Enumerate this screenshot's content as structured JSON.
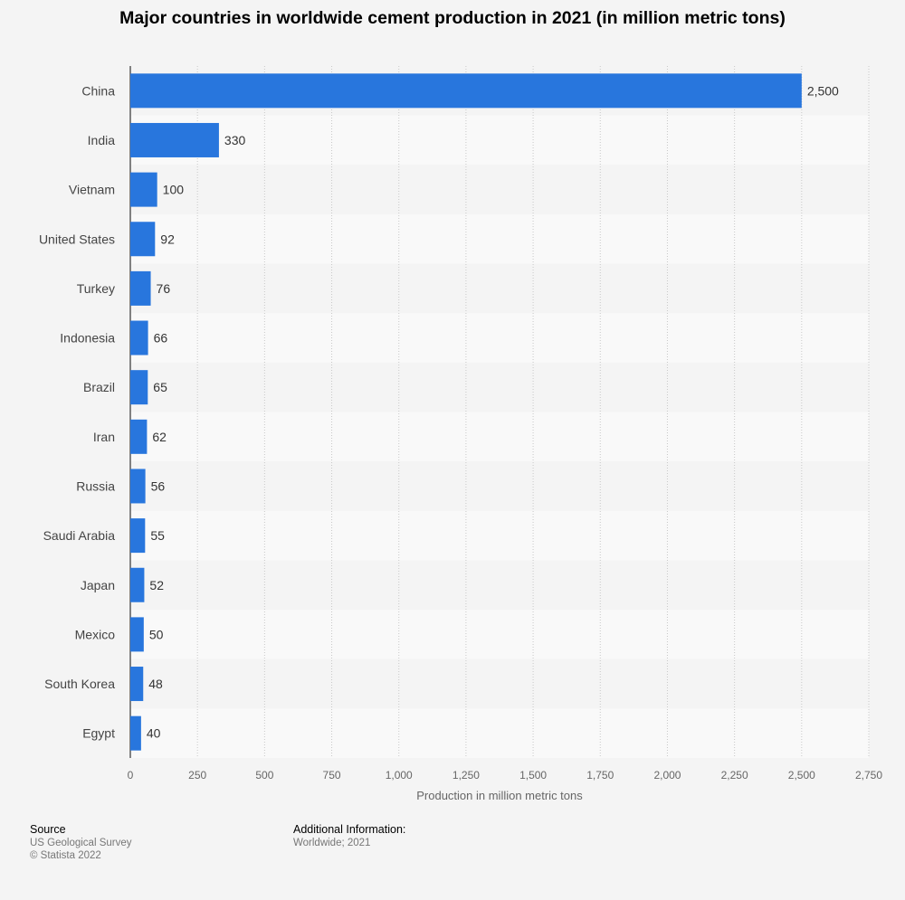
{
  "chart_data": {
    "type": "bar",
    "orientation": "horizontal",
    "title": "Major countries in worldwide cement production in 2021 (in million metric tons)",
    "categories": [
      "China",
      "India",
      "Vietnam",
      "United States",
      "Turkey",
      "Indonesia",
      "Brazil",
      "Iran",
      "Russia",
      "Saudi Arabia",
      "Japan",
      "Mexico",
      "South Korea",
      "Egypt"
    ],
    "values": [
      2500,
      330,
      100,
      92,
      76,
      66,
      65,
      62,
      56,
      55,
      52,
      50,
      48,
      40
    ],
    "value_labels": [
      "2,500",
      "330",
      "100",
      "92",
      "76",
      "66",
      "65",
      "62",
      "56",
      "55",
      "52",
      "50",
      "48",
      "40"
    ],
    "xlabel": "Production in million metric tons",
    "ylabel": "",
    "xlim": [
      0,
      2750
    ],
    "ticks": [
      0,
      250,
      500,
      750,
      1000,
      1250,
      1500,
      1750,
      2000,
      2250,
      2500,
      2750
    ],
    "tick_labels": [
      "0",
      "250",
      "500",
      "750",
      "1,000",
      "1,250",
      "1,500",
      "1,750",
      "2,000",
      "2,250",
      "2,500",
      "2,750"
    ],
    "grid": true,
    "bar_color": "#2876dd"
  },
  "footer": {
    "source_heading": "Source",
    "source_lines": [
      "US Geological Survey",
      "© Statista 2022"
    ],
    "additional_heading": "Additional Information:",
    "additional_lines": [
      "Worldwide; 2021"
    ]
  }
}
